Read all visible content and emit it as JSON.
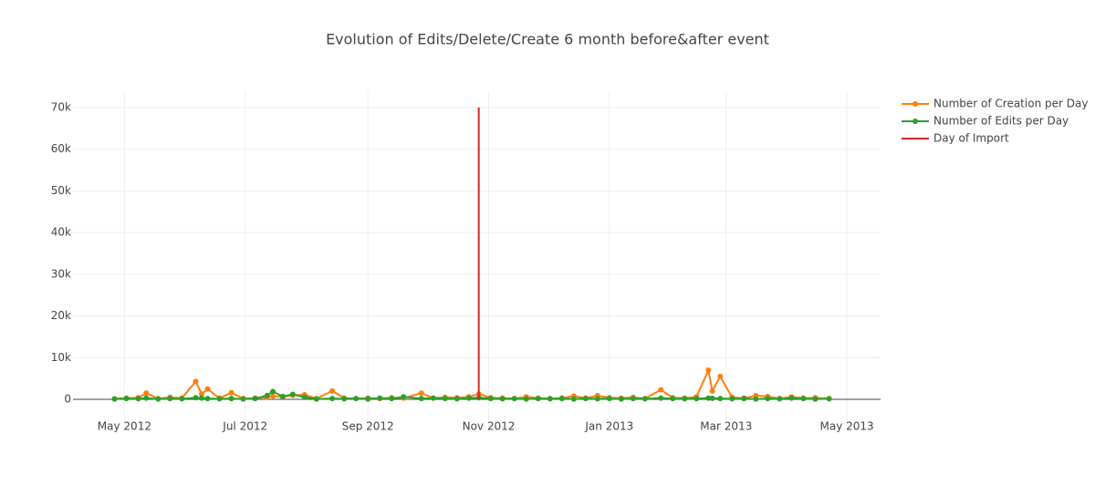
{
  "chart_data": {
    "type": "line",
    "title": "Evolution of Edits/Delete/Create 6 month before&after event",
    "x": [
      "2012-04-26",
      "2012-05-02",
      "2012-05-08",
      "2012-05-12",
      "2012-05-18",
      "2012-05-24",
      "2012-05-30",
      "2012-06-06",
      "2012-06-09",
      "2012-06-12",
      "2012-06-18",
      "2012-06-24",
      "2012-06-30",
      "2012-07-06",
      "2012-07-12",
      "2012-07-15",
      "2012-07-20",
      "2012-07-25",
      "2012-07-31",
      "2012-08-06",
      "2012-08-14",
      "2012-08-20",
      "2012-08-26",
      "2012-09-01",
      "2012-09-07",
      "2012-09-13",
      "2012-09-19",
      "2012-09-28",
      "2012-10-04",
      "2012-10-10",
      "2012-10-16",
      "2012-10-22",
      "2012-10-27",
      "2012-11-02",
      "2012-11-08",
      "2012-11-14",
      "2012-11-20",
      "2012-11-26",
      "2012-12-02",
      "2012-12-08",
      "2012-12-14",
      "2012-12-20",
      "2012-12-26",
      "2013-01-01",
      "2013-01-07",
      "2013-01-13",
      "2013-01-19",
      "2013-01-27",
      "2013-02-02",
      "2013-02-08",
      "2013-02-14",
      "2013-02-20",
      "2013-02-22",
      "2013-02-26",
      "2013-03-04",
      "2013-03-10",
      "2013-03-16",
      "2013-03-22",
      "2013-03-28",
      "2013-04-03",
      "2013-04-09",
      "2013-04-15",
      "2013-04-22"
    ],
    "series": [
      {
        "name": "Number of Creation per Day",
        "color": "#ff7f0e",
        "markers": true,
        "values": [
          150,
          300,
          400,
          1500,
          200,
          500,
          300,
          4300,
          1300,
          2500,
          300,
          1600,
          200,
          300,
          500,
          800,
          600,
          1000,
          1100,
          200,
          2000,
          300,
          200,
          300,
          200,
          400,
          300,
          1500,
          300,
          500,
          400,
          600,
          1300,
          400,
          300,
          200,
          600,
          300,
          200,
          300,
          800,
          300,
          900,
          400,
          300,
          500,
          200,
          2300,
          400,
          300,
          600,
          7000,
          2000,
          5500,
          500,
          300,
          900,
          700,
          200,
          600,
          300,
          400,
          200
        ]
      },
      {
        "name": "Number of Edits per Day",
        "color": "#2ca02c",
        "markers": true,
        "values": [
          100,
          200,
          150,
          300,
          100,
          200,
          150,
          400,
          300,
          200,
          150,
          200,
          100,
          200,
          900,
          1900,
          700,
          1200,
          500,
          100,
          200,
          150,
          200,
          100,
          300,
          200,
          600,
          200,
          300,
          200,
          150,
          300,
          400,
          200,
          150,
          200,
          100,
          200,
          150,
          200,
          100,
          200,
          150,
          200,
          100,
          200,
          150,
          300,
          200,
          150,
          200,
          300,
          250,
          200,
          150,
          200,
          100,
          200,
          150,
          300,
          200,
          100,
          150
        ]
      },
      {
        "name": "Day of Import",
        "color": "#d62728",
        "markers": false,
        "x": [
          "2012-10-27",
          "2012-10-27"
        ],
        "values": [
          0,
          70000
        ]
      }
    ],
    "xlim": [
      "2012-04-05",
      "2013-05-18"
    ],
    "xticks": [
      {
        "value": "2012-05-01",
        "label": "May 2012"
      },
      {
        "value": "2012-07-01",
        "label": "Jul 2012"
      },
      {
        "value": "2012-09-01",
        "label": "Sep 2012"
      },
      {
        "value": "2012-11-01",
        "label": "Nov 2012"
      },
      {
        "value": "2013-01-01",
        "label": "Jan 2013"
      },
      {
        "value": "2013-03-01",
        "label": "Mar 2013"
      },
      {
        "value": "2013-05-01",
        "label": "May 2013"
      }
    ],
    "ylim": [
      -4800,
      73900
    ],
    "yticks": [
      0,
      {
        "value": 10000,
        "label": "10k"
      },
      {
        "value": 20000,
        "label": "20k"
      },
      {
        "value": 30000,
        "label": "30k"
      },
      {
        "value": 40000,
        "label": "40k"
      },
      {
        "value": 50000,
        "label": "50k"
      },
      {
        "value": 60000,
        "label": "60k"
      },
      {
        "value": 70000,
        "label": "70k"
      }
    ],
    "grid": true,
    "legend": "top-right"
  }
}
